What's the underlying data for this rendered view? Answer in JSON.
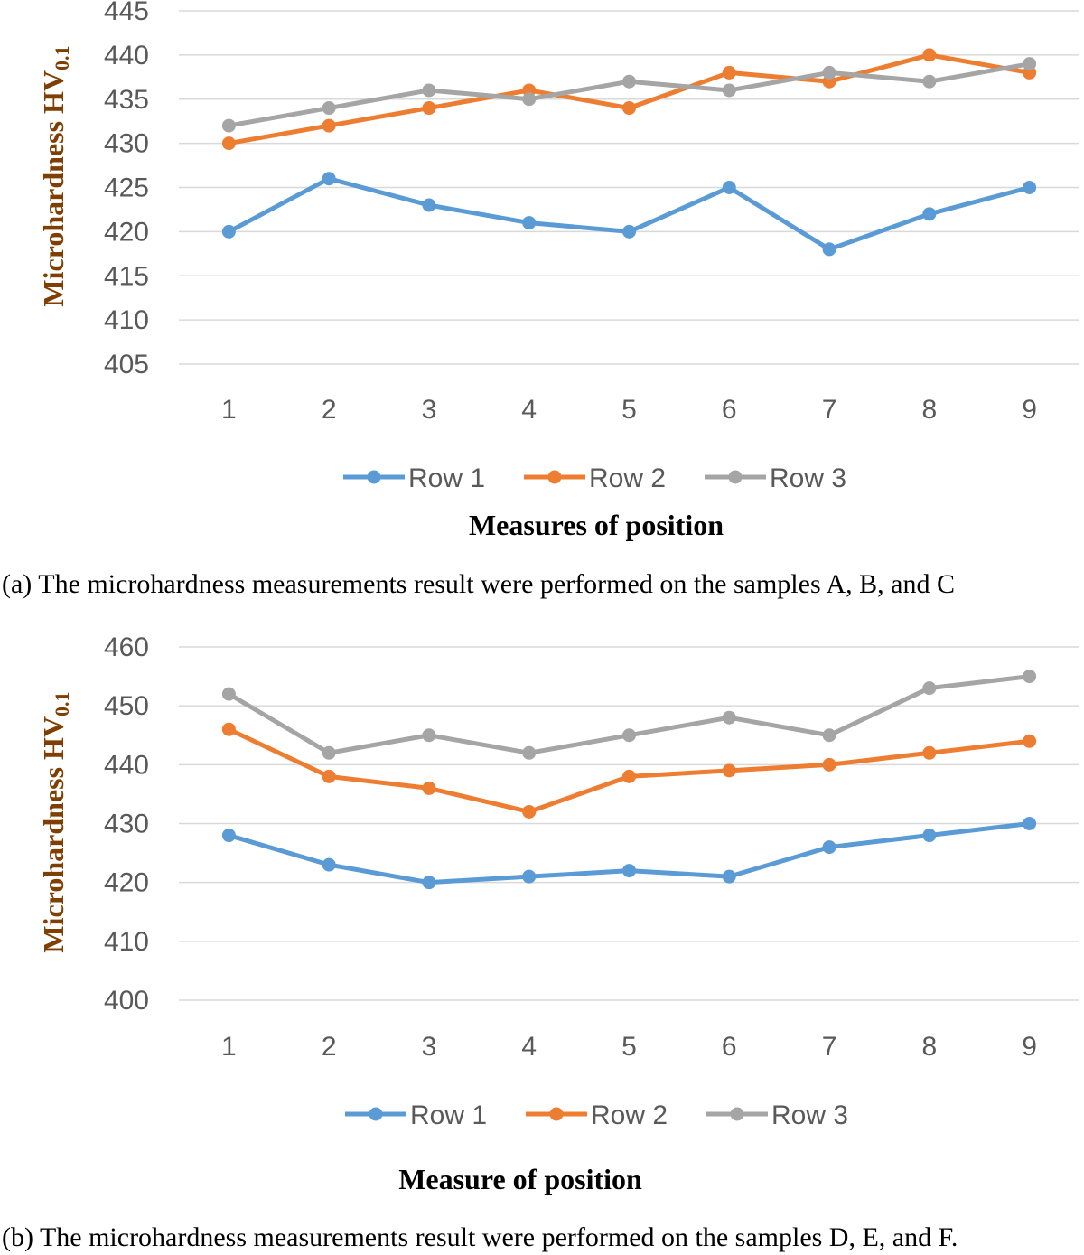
{
  "colors": {
    "row1": "#5B9BD5",
    "row2": "#ED7D31",
    "row3": "#A5A5A5",
    "ylabel": "#7F3F00",
    "grid": "#D9D9D9"
  },
  "chart_data": [
    {
      "type": "line",
      "x": [
        1,
        2,
        3,
        4,
        5,
        6,
        7,
        8,
        9
      ],
      "series": [
        {
          "name": "Row 1",
          "values": [
            420,
            426,
            423,
            421,
            420,
            425,
            418,
            422,
            425
          ]
        },
        {
          "name": "Row 2",
          "values": [
            430,
            432,
            434,
            436,
            434,
            438,
            437,
            440,
            438
          ]
        },
        {
          "name": "Row 3",
          "values": [
            432,
            434,
            436,
            435,
            437,
            436,
            438,
            437,
            439
          ]
        }
      ],
      "ylim": [
        405,
        445
      ],
      "yticks": [
        405,
        410,
        415,
        420,
        425,
        430,
        435,
        440,
        445
      ],
      "ylabel_main": "Microhardness HV",
      "ylabel_sub": "0.1",
      "xlabel": "Measures of position",
      "legend": "bottom",
      "grid": true,
      "caption": "(a) The microhardness measurements result were performed on the samples A, B, and C"
    },
    {
      "type": "line",
      "x": [
        1,
        2,
        3,
        4,
        5,
        6,
        7,
        8,
        9
      ],
      "series": [
        {
          "name": "Row 1",
          "values": [
            428,
            423,
            420,
            421,
            422,
            421,
            426,
            428,
            430
          ]
        },
        {
          "name": "Row 2",
          "values": [
            446,
            438,
            436,
            432,
            438,
            439,
            440,
            442,
            444
          ]
        },
        {
          "name": "Row 3",
          "values": [
            452,
            442,
            445,
            442,
            445,
            448,
            445,
            453,
            455
          ]
        }
      ],
      "ylim": [
        400,
        460
      ],
      "yticks": [
        400,
        410,
        420,
        430,
        440,
        450,
        460
      ],
      "ylabel_main": "Microhardness HV",
      "ylabel_sub": "0.1",
      "xlabel": "Measure of position",
      "legend": "bottom",
      "grid": true,
      "caption": "(b) The microhardness measurements result were performed on the samples D, E, and F."
    }
  ]
}
